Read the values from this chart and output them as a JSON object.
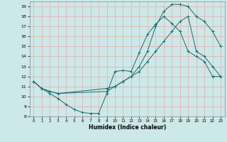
{
  "xlabel": "Humidex (Indice chaleur)",
  "xlim": [
    -0.5,
    23.5
  ],
  "ylim": [
    8,
    19.5
  ],
  "yticks": [
    8,
    9,
    10,
    11,
    12,
    13,
    14,
    15,
    16,
    17,
    18,
    19
  ],
  "xticks": [
    0,
    1,
    2,
    3,
    4,
    5,
    6,
    7,
    8,
    9,
    10,
    11,
    12,
    13,
    14,
    15,
    16,
    17,
    18,
    19,
    20,
    21,
    22,
    23
  ],
  "bg_color": "#cce8e8",
  "grid_color_h": "#e8aaaa",
  "grid_color_v": "#e8aaaa",
  "line_color": "#1a6b6b",
  "line1_x": [
    0,
    1,
    2,
    3,
    4,
    5,
    6,
    7,
    8,
    9,
    10,
    11,
    12,
    13,
    14,
    15,
    16,
    17,
    18,
    19,
    20,
    21,
    22,
    23
  ],
  "line1_y": [
    11.5,
    10.8,
    10.3,
    9.8,
    9.2,
    8.7,
    8.4,
    8.3,
    8.3,
    10.3,
    12.5,
    12.6,
    12.5,
    14.4,
    16.2,
    17.2,
    18.0,
    17.3,
    16.5,
    14.5,
    14.0,
    13.5,
    12.0,
    12.0
  ],
  "line2_x": [
    0,
    1,
    2,
    3,
    9,
    10,
    11,
    12,
    13,
    14,
    15,
    16,
    17,
    18,
    19,
    20,
    21,
    22,
    23
  ],
  "line2_y": [
    11.5,
    10.8,
    10.5,
    10.3,
    10.5,
    11.0,
    11.5,
    12.0,
    12.5,
    13.5,
    14.5,
    15.5,
    16.5,
    17.5,
    18.0,
    14.5,
    14.0,
    13.0,
    12.0
  ],
  "line3_x": [
    0,
    1,
    2,
    3,
    9,
    10,
    11,
    12,
    13,
    14,
    15,
    16,
    17,
    18,
    19,
    20,
    21,
    22,
    23
  ],
  "line3_y": [
    11.5,
    10.8,
    10.5,
    10.3,
    10.8,
    11.0,
    11.5,
    12.0,
    13.0,
    14.5,
    17.0,
    18.5,
    19.2,
    19.2,
    19.0,
    18.0,
    17.5,
    16.5,
    15.0
  ]
}
